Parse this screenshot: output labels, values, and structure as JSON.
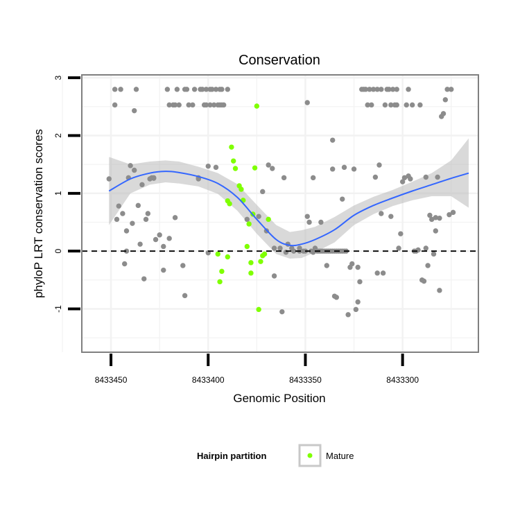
{
  "chart_data": {
    "type": "scatter",
    "title": "Conservation",
    "xlabel": "Genomic Position",
    "ylabel": "phyloP LRT conservation scores",
    "x_reversed": true,
    "xlim": [
      8433261,
      8433465
    ],
    "ylim": [
      -1.75,
      3.05
    ],
    "x_ticks": [
      8433450,
      8433400,
      8433350,
      8433300
    ],
    "y_ticks": [
      -1,
      0,
      1,
      2,
      3
    ],
    "reference_line_y": 0,
    "grid": true,
    "legend": {
      "title": "Hairpin partition",
      "position": "bottom",
      "entries": [
        "Mature"
      ]
    },
    "colors": {
      "other": "#8c8c8c",
      "mature": "#7fff00",
      "smooth": "#3366ff",
      "ribbon": "#b3b3b3",
      "panel_border": "#7f7f7f",
      "grid": "#f2f2f2"
    },
    "series": [
      {
        "group": "other",
        "points": [
          [
            8433451,
            1.25
          ],
          [
            8433448,
            2.8
          ],
          [
            8433448,
            2.53
          ],
          [
            8433445,
            2.8
          ],
          [
            8433447,
            0.55
          ],
          [
            8433446,
            0.78
          ],
          [
            8433444,
            0.65
          ],
          [
            8433443,
            -0.22
          ],
          [
            8433442,
            0.35
          ],
          [
            8433442,
            0
          ],
          [
            8433441,
            1.27
          ],
          [
            8433440,
            1.48
          ],
          [
            8433439,
            0.48
          ],
          [
            8433438,
            1.4
          ],
          [
            8433438,
            2.43
          ],
          [
            8433437,
            2.8
          ],
          [
            8433436,
            0.79
          ],
          [
            8433435,
            0.12
          ],
          [
            8433434,
            1.15
          ],
          [
            8433433,
            -0.48
          ],
          [
            8433432,
            0.55
          ],
          [
            8433431,
            0.65
          ],
          [
            8433430,
            1.25
          ],
          [
            8433429,
            1.27
          ],
          [
            8433428,
            1.26
          ],
          [
            8433428,
            1.27
          ],
          [
            8433427,
            0.2
          ],
          [
            8433425,
            0.28
          ],
          [
            8433423,
            -0.33
          ],
          [
            8433423,
            0.08
          ],
          [
            8433421,
            2.8
          ],
          [
            8433420,
            2.53
          ],
          [
            8433420,
            0.22
          ],
          [
            8433418,
            2.53
          ],
          [
            8433417,
            2.53
          ],
          [
            8433417,
            0.58
          ],
          [
            8433416,
            2.8
          ],
          [
            8433415,
            2.53
          ],
          [
            8433413,
            -0.25
          ],
          [
            8433412,
            2.8
          ],
          [
            8433412,
            -0.77
          ],
          [
            8433411,
            2.8
          ],
          [
            8433410,
            2.53
          ],
          [
            8433408,
            2.53
          ],
          [
            8433407,
            2.8
          ],
          [
            8433405,
            1.25
          ],
          [
            8433405,
            1.27
          ],
          [
            8433404,
            2.8
          ],
          [
            8433403,
            2.8
          ],
          [
            8433402,
            2.53
          ],
          [
            8433401,
            2.8
          ],
          [
            8433401,
            2.53
          ],
          [
            8433400,
            -0.03
          ],
          [
            8433399,
            2.8
          ],
          [
            8433399,
            2.53
          ],
          [
            8433398,
            2.8
          ],
          [
            8433397,
            2.53
          ],
          [
            8433396,
            2.8
          ],
          [
            8433395,
            2.53
          ],
          [
            8433394,
            2.8
          ],
          [
            8433394,
            2.53
          ],
          [
            8433393,
            2.53
          ],
          [
            8433393,
            2.8
          ],
          [
            8433392,
            2.53
          ],
          [
            8433390,
            2.8
          ],
          [
            8433400,
            1.47
          ],
          [
            8433396,
            1.45
          ],
          [
            8433380,
            0.55
          ],
          [
            8433374,
            0.6
          ],
          [
            8433372,
            1.03
          ],
          [
            8433370,
            0.35
          ],
          [
            8433369,
            1.49
          ],
          [
            8433367,
            1.43
          ],
          [
            8433366,
            0.05
          ],
          [
            8433366,
            -0.43
          ],
          [
            8433363,
            0.05
          ],
          [
            8433362,
            -1.05
          ],
          [
            8433361,
            1.27
          ],
          [
            8433360,
            -0.02
          ],
          [
            8433359,
            0.12
          ],
          [
            8433357,
            0.05
          ],
          [
            8433356,
            0
          ],
          [
            8433353,
            0.05
          ],
          [
            8433353,
            0
          ],
          [
            8433351,
            0
          ],
          [
            8433350,
            0
          ],
          [
            8433349,
            0.6
          ],
          [
            8433349,
            2.57
          ],
          [
            8433348,
            0.5
          ],
          [
            8433347,
            0
          ],
          [
            8433346,
            1.27
          ],
          [
            8433345,
            0.05
          ],
          [
            8433343,
            0
          ],
          [
            8433342,
            0
          ],
          [
            8433341,
            0
          ],
          [
            8433340,
            0
          ],
          [
            8433339,
            0
          ],
          [
            8433338,
            0
          ],
          [
            8433337,
            0
          ],
          [
            8433336,
            0
          ],
          [
            8433335,
            0
          ],
          [
            8433334,
            0
          ],
          [
            8433333,
            0
          ],
          [
            8433332,
            0
          ],
          [
            8433331,
            0
          ],
          [
            8433330,
            0
          ],
          [
            8433329,
            0
          ],
          [
            8433339,
            -0.25
          ],
          [
            8433336,
            1.42
          ],
          [
            8433335,
            -0.78
          ],
          [
            8433334,
            -0.8
          ],
          [
            8433331,
            0.9
          ],
          [
            8433330,
            1.45
          ],
          [
            8433328,
            -1.1
          ],
          [
            8433327,
            -0.28
          ],
          [
            8433326,
            -0.22
          ],
          [
            8433325,
            1.42
          ],
          [
            8433324,
            -1.01
          ],
          [
            8433323,
            -0.88
          ],
          [
            8433323,
            -0.28
          ],
          [
            8433322,
            -0.53
          ],
          [
            8433321,
            2.8
          ],
          [
            8433320,
            2.8
          ],
          [
            8433319,
            2.8
          ],
          [
            8433318,
            2.53
          ],
          [
            8433317,
            2.8
          ],
          [
            8433316,
            2.53
          ],
          [
            8433315,
            2.8
          ],
          [
            8433314,
            1.28
          ],
          [
            8433313,
            2.8
          ],
          [
            8433313,
            -0.38
          ],
          [
            8433312,
            1.49
          ],
          [
            8433311,
            2.8
          ],
          [
            8433311,
            0.65
          ],
          [
            8433310,
            -0.38
          ],
          [
            8433309,
            2.53
          ],
          [
            8433308,
            2.8
          ],
          [
            8433307,
            2.8
          ],
          [
            8433306,
            0.6
          ],
          [
            8433306,
            2.53
          ],
          [
            8433305,
            2.8
          ],
          [
            8433304,
            2.53
          ],
          [
            8433303,
            2.8
          ],
          [
            8433303,
            2.53
          ],
          [
            8433302,
            0.05
          ],
          [
            8433301,
            0.3
          ],
          [
            8433300,
            1.2
          ],
          [
            8433299,
            1.27
          ],
          [
            8433298,
            2.53
          ],
          [
            8433297,
            2.8
          ],
          [
            8433297,
            1.3
          ],
          [
            8433296,
            1.25
          ],
          [
            8433295,
            2.53
          ],
          [
            8433294,
            0
          ],
          [
            8433293,
            0
          ],
          [
            8433292,
            0.02
          ],
          [
            8433291,
            2.53
          ],
          [
            8433290,
            -0.5
          ],
          [
            8433289,
            -0.52
          ],
          [
            8433288,
            0.05
          ],
          [
            8433288,
            1.28
          ],
          [
            8433287,
            -0.25
          ],
          [
            8433286,
            0.62
          ],
          [
            8433285,
            0.55
          ],
          [
            8433284,
            -0.05
          ],
          [
            8433283,
            0.35
          ],
          [
            8433282,
            1.28
          ],
          [
            8433281,
            0.57
          ],
          [
            8433281,
            -0.68
          ],
          [
            8433280,
            2.33
          ],
          [
            8433279,
            2.38
          ],
          [
            8433278,
            2.62
          ],
          [
            8433277,
            2.8
          ],
          [
            8433276,
            0.63
          ],
          [
            8433275,
            2.8
          ],
          [
            8433274,
            0.67
          ],
          [
            8433336,
            1.92
          ],
          [
            8433283,
            0.58
          ],
          [
            8433346,
            -0.02
          ],
          [
            8433344,
            0
          ],
          [
            8433342,
            0.5
          ]
        ]
      },
      {
        "group": "mature",
        "name": "Mature",
        "points": [
          [
            8433395,
            -0.05
          ],
          [
            8433394,
            -0.53
          ],
          [
            8433393,
            -0.35
          ],
          [
            8433390,
            0.87
          ],
          [
            8433390,
            -0.1
          ],
          [
            8433389,
            0.82
          ],
          [
            8433388,
            1.8
          ],
          [
            8433387,
            1.56
          ],
          [
            8433386,
            1.43
          ],
          [
            8433384,
            1.13
          ],
          [
            8433383,
            1.07
          ],
          [
            8433382,
            0.88
          ],
          [
            8433380,
            0.08
          ],
          [
            8433379,
            0.47
          ],
          [
            8433378,
            -0.38
          ],
          [
            8433378,
            -0.2
          ],
          [
            8433377,
            0.64
          ],
          [
            8433376,
            1.44
          ],
          [
            8433375,
            2.51
          ],
          [
            8433374,
            -1.01
          ],
          [
            8433373,
            -0.18
          ],
          [
            8433372,
            -0.08
          ],
          [
            8433371,
            -0.05
          ],
          [
            8433369,
            0.55
          ]
        ]
      }
    ],
    "smooth_line": {
      "x": [
        8433451,
        8433440,
        8433430,
        8433422,
        8433415,
        8433405,
        8433395,
        8433385,
        8433375,
        8433365,
        8433358,
        8433352,
        8433345,
        8433335,
        8433325,
        8433315,
        8433305,
        8433295,
        8433285,
        8433275,
        8433266
      ],
      "y": [
        1.04,
        1.25,
        1.35,
        1.38,
        1.36,
        1.29,
        1.17,
        0.93,
        0.55,
        0.2,
        0.1,
        0.12,
        0.2,
        0.37,
        0.62,
        0.79,
        0.92,
        1.04,
        1.15,
        1.26,
        1.35
      ],
      "lower": [
        0.45,
        1.0,
        1.15,
        1.19,
        1.17,
        1.12,
        0.99,
        0.7,
        0.3,
        -0.05,
        -0.13,
        -0.12,
        -0.02,
        0.15,
        0.45,
        0.64,
        0.78,
        0.88,
        0.95,
        0.95,
        0.75
      ],
      "upper": [
        1.63,
        1.5,
        1.55,
        1.57,
        1.55,
        1.46,
        1.35,
        1.16,
        0.8,
        0.45,
        0.33,
        0.36,
        0.42,
        0.59,
        0.79,
        0.94,
        1.06,
        1.2,
        1.35,
        1.57,
        1.95
      ]
    }
  }
}
